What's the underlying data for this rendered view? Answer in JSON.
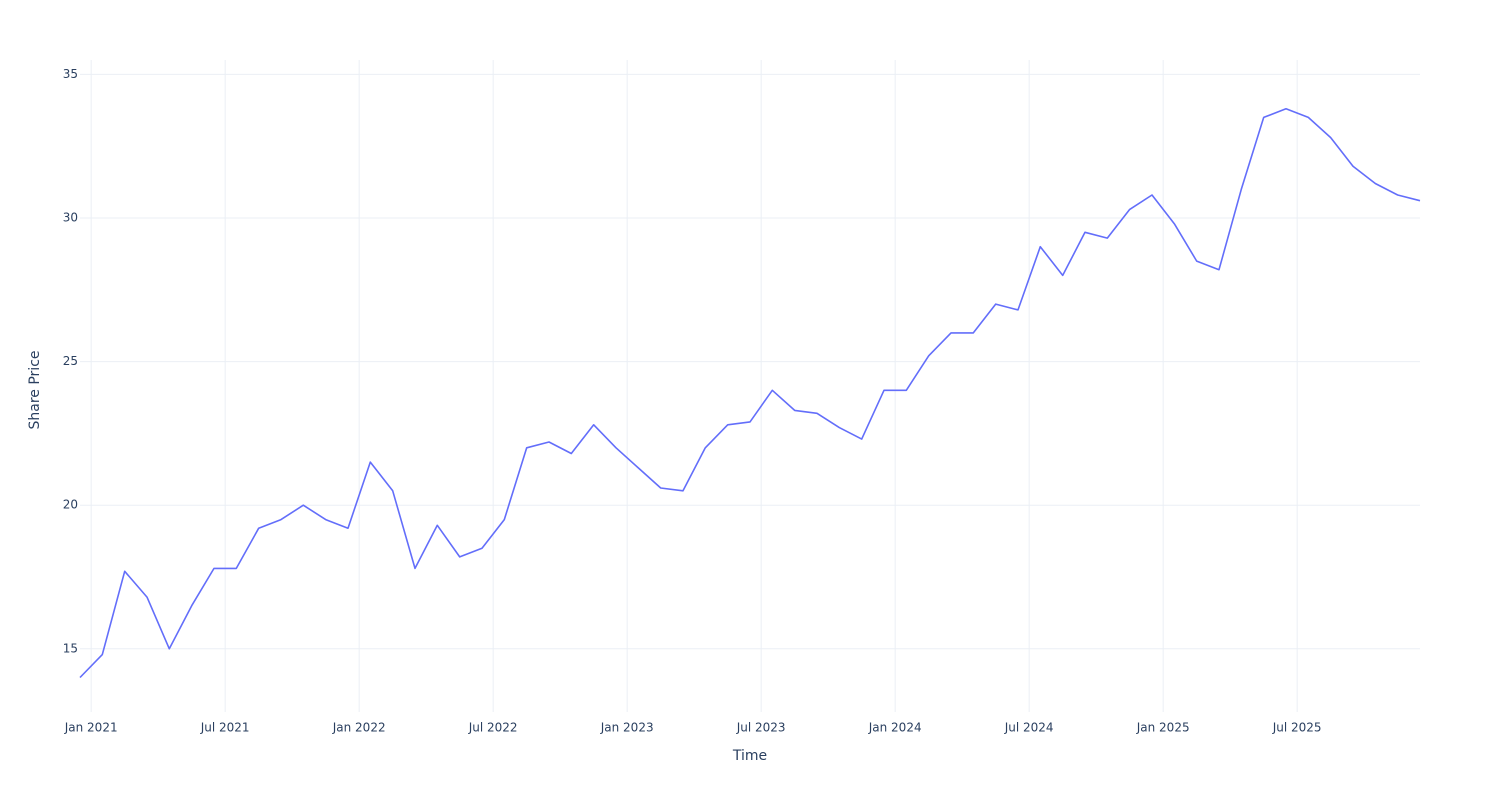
{
  "chart_data": {
    "type": "line",
    "x_label": "Time",
    "y_label": "Share Price",
    "x": [
      "2020-12",
      "2021-01",
      "2021-02",
      "2021-03",
      "2021-04",
      "2021-05",
      "2021-06",
      "2021-07",
      "2021-08",
      "2021-09",
      "2021-10",
      "2021-11",
      "2021-12",
      "2022-01",
      "2022-02",
      "2022-03",
      "2022-04",
      "2022-05",
      "2022-06",
      "2022-07",
      "2022-08",
      "2022-09",
      "2022-10",
      "2022-11",
      "2022-12",
      "2023-01",
      "2023-02",
      "2023-03",
      "2023-04",
      "2023-05",
      "2023-06",
      "2023-07",
      "2023-08",
      "2023-09",
      "2023-10",
      "2023-11",
      "2023-12",
      "2024-01",
      "2024-02",
      "2024-03",
      "2024-04",
      "2024-05",
      "2024-06",
      "2024-07",
      "2024-08",
      "2024-09",
      "2024-10",
      "2024-11",
      "2024-12",
      "2025-01",
      "2025-02",
      "2025-03",
      "2025-04",
      "2025-05",
      "2025-06",
      "2025-07",
      "2025-08",
      "2025-09",
      "2025-10",
      "2025-11",
      "2025-12"
    ],
    "series": [
      {
        "name": "Share Price",
        "color": "#636efa",
        "values": [
          14.0,
          14.8,
          17.7,
          16.8,
          15.0,
          16.5,
          17.8,
          17.8,
          19.2,
          19.5,
          20.0,
          19.5,
          19.2,
          21.5,
          20.5,
          17.8,
          19.3,
          18.2,
          18.5,
          19.5,
          22.0,
          22.2,
          21.8,
          22.8,
          22.0,
          21.3,
          20.6,
          20.5,
          22.0,
          22.8,
          22.9,
          24.0,
          23.3,
          23.2,
          22.7,
          22.3,
          24.0,
          24.0,
          25.2,
          26.0,
          26.0,
          27.0,
          26.8,
          29.0,
          28.0,
          29.5,
          29.3,
          30.3,
          30.8,
          29.8,
          28.5,
          28.2,
          31.0,
          33.5,
          33.8,
          33.5,
          32.8,
          31.8,
          31.2,
          30.8,
          30.6
        ]
      }
    ],
    "xlim": [
      "2020-12",
      "2025-12"
    ],
    "xticks": [
      {
        "value": "2021-01",
        "label": "Jan 2021"
      },
      {
        "value": "2021-07",
        "label": "Jul 2021"
      },
      {
        "value": "2022-01",
        "label": "Jan 2022"
      },
      {
        "value": "2022-07",
        "label": "Jul 2022"
      },
      {
        "value": "2023-01",
        "label": "Jan 2023"
      },
      {
        "value": "2023-07",
        "label": "Jul 2023"
      },
      {
        "value": "2024-01",
        "label": "Jan 2024"
      },
      {
        "value": "2024-07",
        "label": "Jul 2024"
      },
      {
        "value": "2025-01",
        "label": "Jan 2025"
      },
      {
        "value": "2025-07",
        "label": "Jul 2025"
      }
    ],
    "ylim": [
      12.8,
      35.5
    ],
    "yticks": [
      15,
      20,
      25,
      30,
      35
    ],
    "grid": true
  }
}
